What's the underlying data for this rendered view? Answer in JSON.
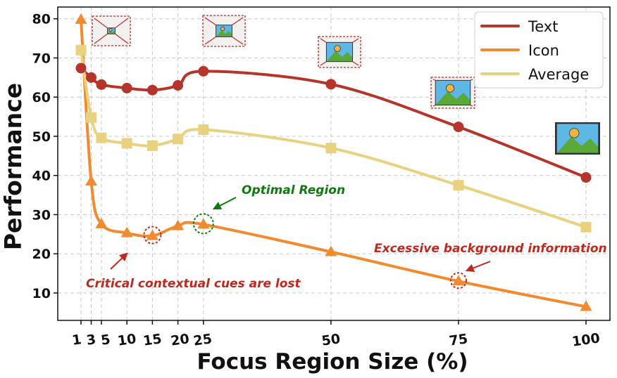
{
  "chart_data": {
    "type": "line",
    "xlabel": "Focus Region Size (%)",
    "ylabel": "Performance",
    "x": [
      1,
      3,
      5,
      10,
      15,
      20,
      25,
      50,
      75,
      100
    ],
    "x_tick_labels": [
      "1",
      "3",
      "5",
      "10",
      "15",
      "20",
      "25",
      "50",
      "75",
      "100"
    ],
    "ylim": [
      3,
      83
    ],
    "y_ticks": [
      10,
      20,
      30,
      40,
      50,
      60,
      70,
      80
    ],
    "grid": true,
    "legend_position": "top-right",
    "series": [
      {
        "name": "Text",
        "color": "#b5352a",
        "marker": "circle",
        "values": [
          67.4,
          65.0,
          63.2,
          62.3,
          61.8,
          63.0,
          66.6,
          63.3,
          52.4,
          39.5
        ]
      },
      {
        "name": "Icon",
        "color": "#f28a30",
        "marker": "triangle",
        "values": [
          79.8,
          38.5,
          27.6,
          25.3,
          24.6,
          27.1,
          27.5,
          20.5,
          13.0,
          6.5
        ]
      },
      {
        "name": "Average",
        "color": "#e9d27f",
        "marker": "square",
        "values": [
          72.0,
          54.8,
          49.6,
          48.2,
          47.6,
          49.3,
          51.7,
          47.0,
          37.5,
          26.8
        ]
      }
    ],
    "annotations": [
      {
        "text": "Optimal Region",
        "color": "#0e7a0e"
      },
      {
        "text": "Critical contextual cues are lost",
        "color": "#c0281e"
      },
      {
        "text": "Excessive background information",
        "color": "#c0281e"
      }
    ]
  }
}
